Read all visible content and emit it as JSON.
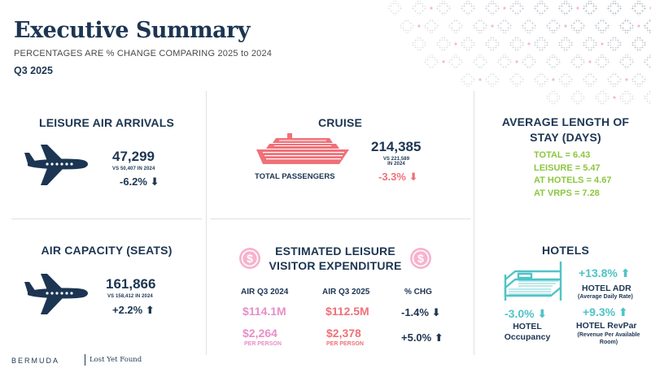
{
  "header": {
    "title": "Executive Summary",
    "subtitle": "PERCENTAGES ARE % CHANGE COMPARING 2025 to 2024",
    "quarter": "Q3 2025"
  },
  "leisure_air": {
    "heading": "LEISURE AIR ARRIVALS",
    "value": "47,299",
    "comparison": "VS 50,407 IN 2024",
    "change": "-6.2%"
  },
  "cruise": {
    "heading": "CRUISE",
    "label": "TOTAL PASSENGERS",
    "value": "214,385",
    "comparison_line1": "VS 221,589",
    "comparison_line2": "IN 2024",
    "change": "-3.3%"
  },
  "stay": {
    "heading_line1": "AVERAGE LENGTH OF",
    "heading_line2": "STAY (DAYS)",
    "lines": [
      "TOTAL = 6.43",
      "LEISURE = 5.47",
      "AT HOTELS = 4.67",
      "AT VRPS = 7.28"
    ]
  },
  "air_capacity": {
    "heading": "AIR CAPACITY (SEATS)",
    "value": "161,866",
    "comparison": "VS 158,412 IN 2024",
    "change": "+2.2%"
  },
  "expenditure": {
    "heading_line1": "ESTIMATED LEISURE",
    "heading_line2": "VISITOR EXPENDITURE",
    "col1": "AIR Q3 2024",
    "col2": "AIR Q3 2025",
    "col3": "% CHG",
    "total_2024": "$114.1M",
    "total_2025": "$112.5M",
    "total_chg": "-1.4%",
    "pp_2024": "$2,264",
    "pp_2025": "$2,378",
    "pp_chg": "+5.0%",
    "per_person": "PER PERSON"
  },
  "hotels": {
    "heading": "HOTELS",
    "adr_change": "+13.8%",
    "adr_label": "HOTEL ADR",
    "adr_sub": "(Average Daily Rate)",
    "occ_change": "-3.0%",
    "occ_label1": "HOTEL",
    "occ_label2": "Occupancy",
    "revpar_change": "+9.3%",
    "revpar_label": "HOTEL RevPar",
    "revpar_sub1": "(Revenue Per Available",
    "revpar_sub2": "Room)"
  },
  "footer": {
    "brand": "BERMUDA",
    "tagline": "Lost Yet Found"
  },
  "colors": {
    "navy": "#1c3552",
    "coral": "#f07178",
    "green": "#8cc63f",
    "teal": "#4fc3c7",
    "pink": "#e78fc7"
  }
}
